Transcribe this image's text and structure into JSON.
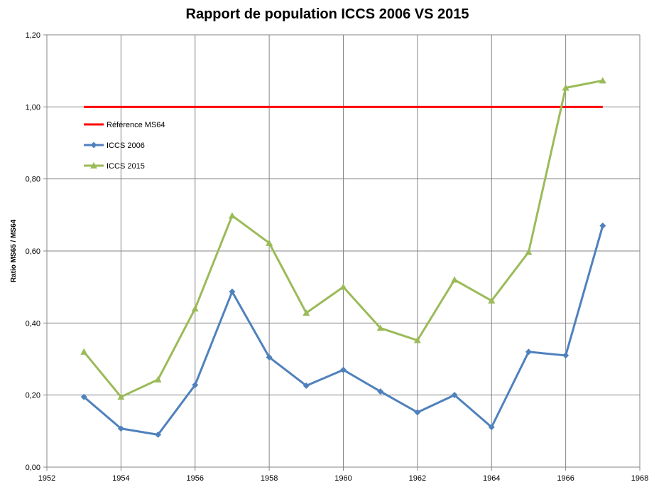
{
  "chart_data": {
    "type": "line",
    "title": "Rapport de population ICCS 2006 VS 2015",
    "xlabel": "",
    "ylabel": "Ratio MS65 / MS64",
    "xlim": [
      1952,
      1968
    ],
    "ylim": [
      0,
      1.2
    ],
    "x_ticks": [
      "1952",
      "1954",
      "1956",
      "1958",
      "1960",
      "1962",
      "1964",
      "1966",
      "1968"
    ],
    "y_ticks": [
      "0,00",
      "0,20",
      "0,40",
      "0,60",
      "0,80",
      "1,00",
      "1,20"
    ],
    "grid": true,
    "legend_position": "upper-left inside plot",
    "series": [
      {
        "name": "Référence MS64",
        "color": "#ff0000",
        "marker": "none",
        "x": [
          1953,
          1967
        ],
        "y": [
          1.0,
          1.0
        ]
      },
      {
        "name": "ICCS 2006",
        "color": "#4f81bd",
        "marker": "diamond",
        "x": [
          1953,
          1954,
          1955,
          1956,
          1957,
          1958,
          1959,
          1960,
          1961,
          1962,
          1963,
          1964,
          1965,
          1966,
          1967
        ],
        "y": [
          0.195,
          0.107,
          0.09,
          0.228,
          0.487,
          0.305,
          0.226,
          0.27,
          0.21,
          0.152,
          0.2,
          0.111,
          0.32,
          0.31,
          0.67
        ]
      },
      {
        "name": "ICCS 2015",
        "color": "#9bbb59",
        "marker": "triangle",
        "x": [
          1953,
          1954,
          1955,
          1956,
          1957,
          1958,
          1959,
          1960,
          1961,
          1962,
          1963,
          1964,
          1965,
          1966,
          1967
        ],
        "y": [
          0.32,
          0.195,
          0.243,
          0.44,
          0.698,
          0.622,
          0.428,
          0.5,
          0.386,
          0.352,
          0.52,
          0.462,
          0.597,
          1.053,
          1.073
        ]
      }
    ]
  }
}
